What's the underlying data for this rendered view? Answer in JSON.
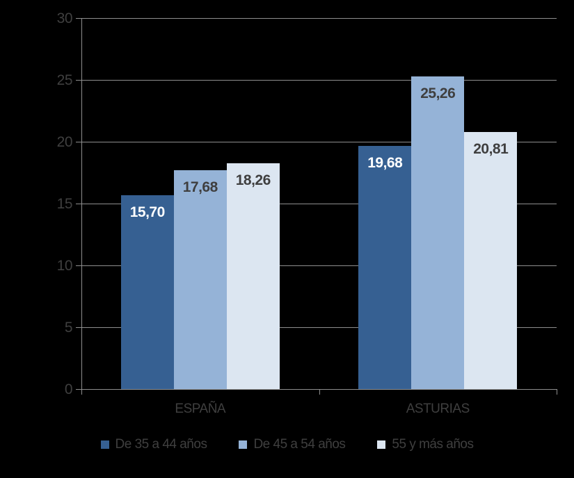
{
  "chart_data": {
    "type": "bar",
    "title": "",
    "categories": [
      "ESPAÑA",
      "ASTURIAS"
    ],
    "series": [
      {
        "name": "De 35 a 44 años",
        "color": "#366092",
        "label_color": "#ffffff",
        "values": [
          15.7,
          19.68
        ],
        "labels": [
          "15,70",
          "19,68"
        ]
      },
      {
        "name": "De 45 a 54 años",
        "color": "#95B3D7",
        "label_color": "#3f3f3f",
        "values": [
          17.68,
          25.26
        ],
        "labels": [
          "17,68",
          "25,26"
        ]
      },
      {
        "name": "55 y más años",
        "color": "#DCE6F1",
        "label_color": "#3f3f3f",
        "values": [
          18.26,
          20.81
        ],
        "labels": [
          "18,26",
          "20,81"
        ]
      }
    ],
    "xlabel": "",
    "ylabel": "",
    "ylim": [
      0,
      30
    ],
    "yticks": [
      0,
      5,
      10,
      15,
      20,
      25,
      30
    ],
    "grid": true,
    "legend_position": "bottom",
    "colors": {
      "background": "#000000",
      "axis_line": "#8f8f8f",
      "tick_text": "#3f3f3f",
      "category_text": "#3f3f3f",
      "legend_text": "#3f3f3f"
    }
  }
}
